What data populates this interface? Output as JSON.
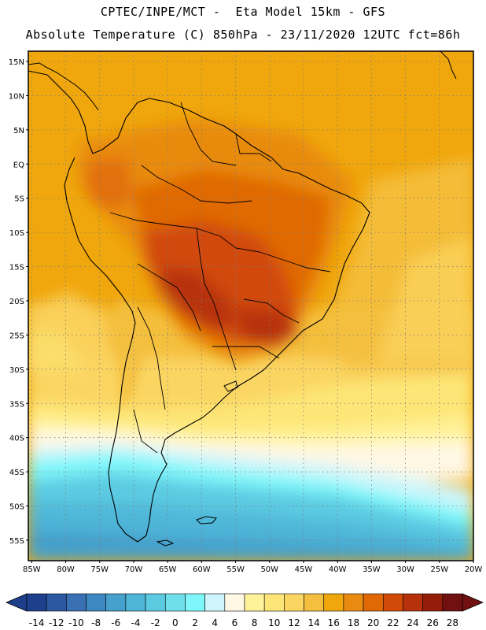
{
  "header": {
    "title_line1": "CPTEC/INPE/MCT -  Eta Model 15km - GFS",
    "title_line2": "Absolute Temperature (C) 850hPa - 23/11/2020 12UTC fct=86h"
  },
  "map": {
    "lat_labels": [
      "15N",
      "10N",
      "5N",
      "EQ",
      "5S",
      "10S",
      "15S",
      "20S",
      "25S",
      "30S",
      "35S",
      "40S",
      "45S",
      "50S",
      "55S"
    ],
    "lat_values": [
      15,
      10,
      5,
      0,
      -5,
      -10,
      -15,
      -20,
      -25,
      -30,
      -35,
      -40,
      -45,
      -50,
      -55
    ],
    "lon_labels": [
      "85W",
      "80W",
      "75W",
      "70W",
      "65W",
      "60W",
      "55W",
      "50W",
      "45W",
      "40W",
      "35W",
      "30W",
      "25W",
      "20W"
    ],
    "lon_values": [
      -85,
      -80,
      -75,
      -70,
      -65,
      -60,
      -55,
      -50,
      -45,
      -40,
      -35,
      -30,
      -25,
      -20
    ],
    "lat_range": [
      -58,
      16.5
    ],
    "lon_range": [
      -85.5,
      -20
    ]
  },
  "colorbar": {
    "labels": [
      "-14",
      "-12",
      "-10",
      "-8",
      "-6",
      "-4",
      "-2",
      "0",
      "2",
      "4",
      "6",
      "8",
      "10",
      "12",
      "14",
      "16",
      "18",
      "20",
      "22",
      "24",
      "26",
      "28"
    ],
    "colors": [
      "#1d3f8c",
      "#2b58a0",
      "#3a70b4",
      "#3d88c0",
      "#45a0cc",
      "#4fb6d8",
      "#5ccbe2",
      "#6fdfec",
      "#7ff7fa",
      "#cdf5fb",
      "#fff8e4",
      "#fff39a",
      "#fde677",
      "#fbd562",
      "#f4bf3e",
      "#f0a70d",
      "#e88b10",
      "#e06906",
      "#d14a08",
      "#b7320c",
      "#941d0a",
      "#701010"
    ]
  }
}
